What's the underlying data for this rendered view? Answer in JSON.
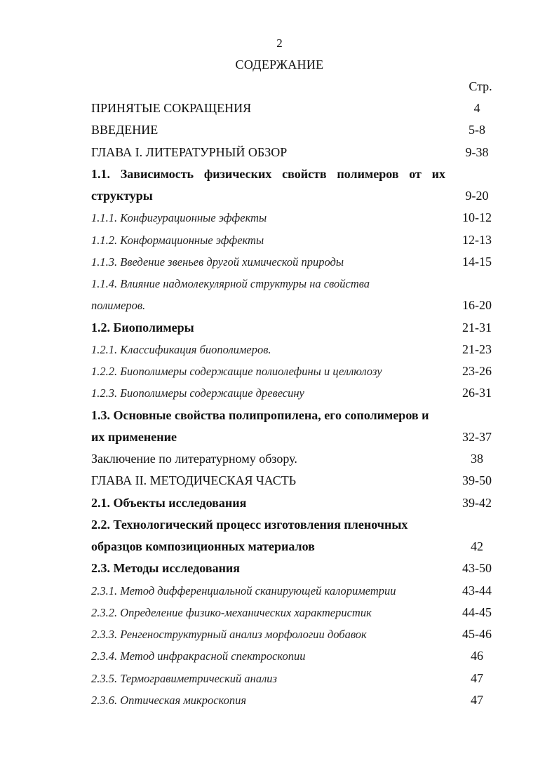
{
  "page_number": "2",
  "title": "СОДЕРЖАНИЕ",
  "page_col_header": "Стр.",
  "rows": [
    {
      "text": "ПРИНЯТЫЕ СОКРАЩЕНИЯ",
      "page": "4",
      "style": "normal"
    },
    {
      "text": "ВВЕДЕНИЕ",
      "page": "5-8",
      "style": "normal"
    },
    {
      "text": "ГЛАВА I. ЛИТЕРАТУРНЫЙ ОБЗОР",
      "page": "9-38",
      "style": "normal"
    },
    {
      "text": "1.1. Зависимость физических свойств полимеров от их",
      "page": "",
      "style": "bold just"
    },
    {
      "text": "структуры",
      "page": "9-20",
      "style": "bold"
    },
    {
      "text": "1.1.1. Конфигурационные эффекты",
      "page": "10-12",
      "style": "ital"
    },
    {
      "text": "1.1.2. Конформационные эффекты",
      "page": "12-13",
      "style": "ital"
    },
    {
      "text": "1.1.3. Введение звеньев другой химической природы",
      "page": "14-15",
      "style": "ital"
    },
    {
      "text": "1.1.4. Влияние надмолекулярной структуры на свойства",
      "page": "",
      "style": "ital"
    },
    {
      "text": "полимеров.",
      "page": "16-20",
      "style": "ital"
    },
    {
      "text": "1.2. Биополимеры",
      "page": "21-31",
      "style": "bold"
    },
    {
      "text": "1.2.1. Классификация биополимеров.",
      "page": "21-23",
      "style": "ital"
    },
    {
      "text": "1.2.2. Биополимеры содержащие полиолефины и целлюлозу",
      "page": "23-26",
      "style": "ital"
    },
    {
      "text": "1.2.3. Биополимеры содержащие древесину",
      "page": "26-31",
      "style": "ital"
    },
    {
      "text": "1.3. Основные свойства полипропилена, его сополимеров и",
      "page": "",
      "style": "bold"
    },
    {
      "text": "их применение",
      "page": "32-37",
      "style": "bold"
    },
    {
      "text": "Заключение по литературному обзору.",
      "page": "38",
      "style": "normal"
    },
    {
      "text": "ГЛАВА II. МЕТОДИЧЕСКАЯ ЧАСТЬ",
      "page": "39-50",
      "style": "normal"
    },
    {
      "text": "2.1. Объекты исследования",
      "page": "39-42",
      "style": "bold"
    },
    {
      "text": "2.2. Технологический процесс изготовления пленочных",
      "page": "",
      "style": "bold"
    },
    {
      "text": "образцов композиционных материалов",
      "page": "42",
      "style": "bold"
    },
    {
      "text": "2.3. Методы исследования",
      "page": "43-50",
      "style": "bold"
    },
    {
      "text": "2.3.1. Метод дифференциальной сканирующей калориметрии",
      "page": "43-44",
      "style": "ital"
    },
    {
      "text": "2.3.2. Определение физико-механических характеристик",
      "page": "44-45",
      "style": "ital"
    },
    {
      "text": "2.3.3. Ренгеноструктурный анализ морфологии добавок",
      "page": "45-46",
      "style": "ital"
    },
    {
      "text": "2.3.4. Метод инфракрасной спектроскопии",
      "page": "46",
      "style": "ital"
    },
    {
      "text": "2.3.5. Термогравиметрический анализ",
      "page": "47",
      "style": "ital"
    },
    {
      "text": "2.3.6. Оптическая микроскопия",
      "page": "47",
      "style": "ital"
    }
  ]
}
